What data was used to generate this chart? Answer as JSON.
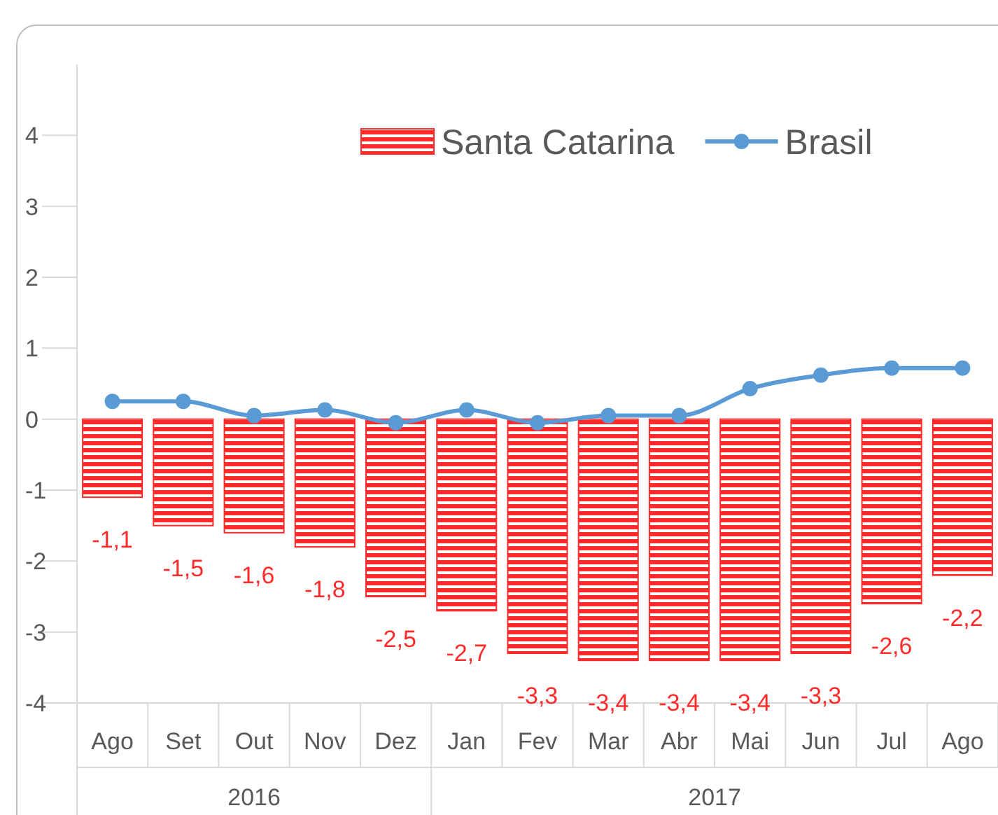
{
  "chart_data": {
    "type": "bar",
    "categories": [
      "Ago",
      "Set",
      "Out",
      "Nov",
      "Dez",
      "Jan",
      "Fev",
      "Mar",
      "Abr",
      "Mai",
      "Jun",
      "Jul",
      "Ago"
    ],
    "series": [
      {
        "name": "Santa Catarina",
        "color": "#ff2a2a",
        "values": [
          -1.1,
          -1.5,
          -1.6,
          -1.8,
          -2.5,
          -2.7,
          -3.3,
          -3.4,
          -3.4,
          -3.4,
          -3.3,
          -2.6,
          -2.2
        ],
        "value_labels": [
          "-1,1",
          "-1,5",
          "-1,6",
          "-1,8",
          "-2,5",
          "-2,7",
          "-3,3",
          "-3,4",
          "-3,4",
          "-3,4",
          "-3,3",
          "-2,6",
          "-2,2"
        ]
      },
      {
        "name": "Brasil",
        "type": "line",
        "color": "#5b9bd5",
        "values": [
          0.25,
          0.25,
          0.05,
          0.13,
          -0.05,
          0.13,
          -0.05,
          0.05,
          0.05,
          0.43,
          0.62,
          0.72,
          0.72
        ]
      }
    ],
    "annotations": [
      "2016",
      "2017"
    ],
    "ylim": [
      -4,
      5
    ],
    "yticks": [
      -4,
      -3,
      -2,
      -1,
      0,
      1,
      2,
      3,
      4
    ],
    "legend": "top right",
    "marker": "circle",
    "grid": false
  }
}
